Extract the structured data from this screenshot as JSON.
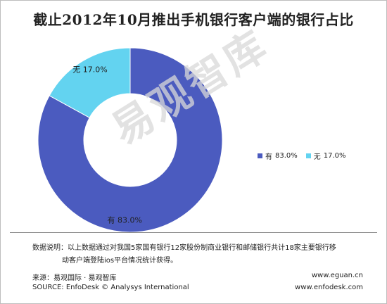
{
  "title": "截止2012年10月推出手机银行客户端的银行占比",
  "watermark": "易观智库",
  "chart_data": {
    "type": "pie",
    "title": "截止2012年10月推出手机银行客户端的银行占比",
    "donut": true,
    "start_angle_deg": 0,
    "slices": [
      {
        "label": "有",
        "value": 83.0,
        "display": "83.0%",
        "color": "#4b5bbf"
      },
      {
        "label": "无",
        "value": 17.0,
        "display": "17.0%",
        "color": "#63d3f0"
      }
    ],
    "legend_position": "right"
  },
  "legend": [
    {
      "label": "有",
      "value": "83.0%",
      "color": "#4b5bbf"
    },
    {
      "label": "无",
      "value": "17.0%",
      "color": "#63d3f0"
    }
  ],
  "note": {
    "line1": "数据说明：以上数据通过对我国5家国有银行12家股份制商业银行和邮储银行共计18家主要银行移",
    "line2": "动客户端登陆ios平台情况统计获得。"
  },
  "source": {
    "cn": "来源：易观国际 · 易观智库",
    "en": "SOURCE: EnfoDesk © Analysys International"
  },
  "urls": {
    "u1": "www.eguan.cn",
    "u2": "www.enfodesk.com"
  }
}
